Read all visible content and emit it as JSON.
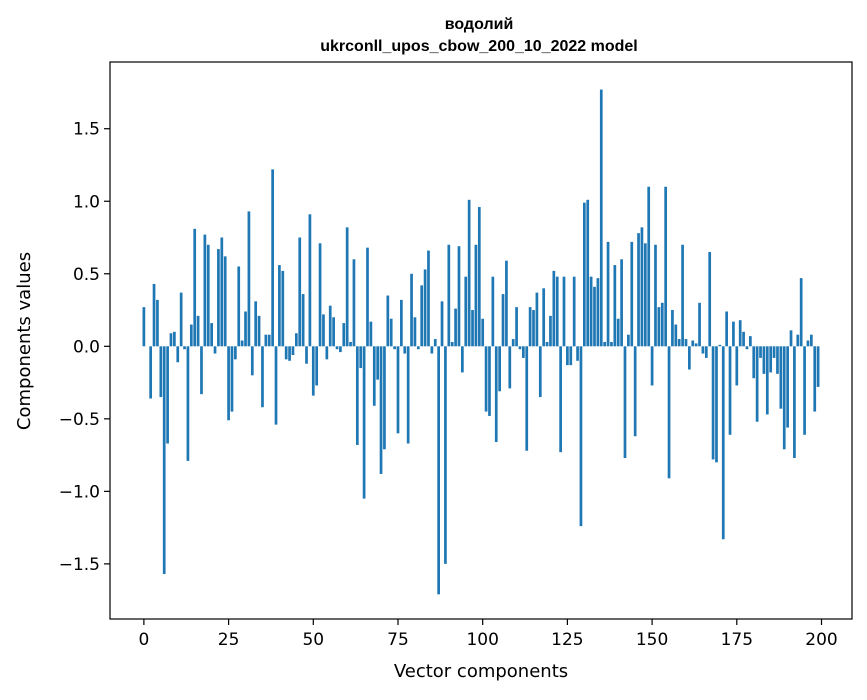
{
  "chart_data": {
    "type": "bar",
    "title_line1": "водолий",
    "title_line2": "ukrconll_upos_cbow_200_10_2022 model",
    "xlabel": "Vector components",
    "ylabel": "Components values",
    "xlim": [
      -10,
      209
    ],
    "ylim": [
      -1.88,
      1.96
    ],
    "xticks": [
      0,
      25,
      50,
      75,
      100,
      125,
      150,
      175,
      200
    ],
    "yticks": [
      -1.5,
      -1.0,
      -0.5,
      0.0,
      0.5,
      1.0,
      1.5
    ],
    "ytick_labels": [
      "−1.5",
      "−1.0",
      "−0.5",
      "0.0",
      "0.5",
      "1.0",
      "1.5"
    ],
    "bar_color": "#1f77b4",
    "grid": false,
    "x": [
      0,
      1,
      2,
      3,
      4,
      5,
      6,
      7,
      8,
      9,
      10,
      11,
      12,
      13,
      14,
      15,
      16,
      17,
      18,
      19,
      20,
      21,
      22,
      23,
      24,
      25,
      26,
      27,
      28,
      29,
      30,
      31,
      32,
      33,
      34,
      35,
      36,
      37,
      38,
      39,
      40,
      41,
      42,
      43,
      44,
      45,
      46,
      47,
      48,
      49,
      50,
      51,
      52,
      53,
      54,
      55,
      56,
      57,
      58,
      59,
      60,
      61,
      62,
      63,
      64,
      65,
      66,
      67,
      68,
      69,
      70,
      71,
      72,
      73,
      74,
      75,
      76,
      77,
      78,
      79,
      80,
      81,
      82,
      83,
      84,
      85,
      86,
      87,
      88,
      89,
      90,
      91,
      92,
      93,
      94,
      95,
      96,
      97,
      98,
      99,
      100,
      101,
      102,
      103,
      104,
      105,
      106,
      107,
      108,
      109,
      110,
      111,
      112,
      113,
      114,
      115,
      116,
      117,
      118,
      119,
      120,
      121,
      122,
      123,
      124,
      125,
      126,
      127,
      128,
      129,
      130,
      131,
      132,
      133,
      134,
      135,
      136,
      137,
      138,
      139,
      140,
      141,
      142,
      143,
      144,
      145,
      146,
      147,
      148,
      149,
      150,
      151,
      152,
      153,
      154,
      155,
      156,
      157,
      158,
      159,
      160,
      161,
      162,
      163,
      164,
      165,
      166,
      167,
      168,
      169,
      170,
      171,
      172,
      173,
      174,
      175,
      176,
      177,
      178,
      179,
      180,
      181,
      182,
      183,
      184,
      185,
      186,
      187,
      188,
      189,
      190,
      191,
      192,
      193,
      194,
      195,
      196,
      197,
      198,
      199
    ],
    "values": [
      0.27,
      0.0,
      -0.36,
      0.43,
      0.32,
      -0.35,
      -1.57,
      -0.67,
      0.09,
      0.1,
      -0.11,
      0.37,
      -0.02,
      -0.79,
      0.15,
      0.81,
      0.21,
      -0.33,
      0.77,
      0.7,
      0.16,
      -0.05,
      0.67,
      0.75,
      0.62,
      -0.51,
      -0.45,
      -0.09,
      0.55,
      0.04,
      0.24,
      0.93,
      -0.2,
      0.31,
      0.21,
      -0.42,
      0.08,
      0.08,
      1.22,
      -0.54,
      0.56,
      0.52,
      -0.09,
      -0.1,
      -0.06,
      0.09,
      0.75,
      0.36,
      -0.12,
      0.91,
      -0.34,
      -0.27,
      0.71,
      0.22,
      -0.09,
      0.28,
      0.2,
      -0.02,
      -0.04,
      0.16,
      0.82,
      0.03,
      0.6,
      -0.68,
      -0.15,
      -1.05,
      0.68,
      0.17,
      -0.41,
      -0.23,
      -0.88,
      -0.71,
      0.35,
      0.19,
      -0.02,
      -0.6,
      0.32,
      -0.05,
      -0.67,
      0.5,
      0.2,
      -0.02,
      0.42,
      0.53,
      0.66,
      -0.05,
      0.05,
      -1.71,
      0.31,
      -1.5,
      0.7,
      0.03,
      0.26,
      0.69,
      -0.18,
      0.48,
      1.01,
      0.25,
      0.7,
      0.96,
      0.19,
      -0.45,
      -0.48,
      0.48,
      -0.66,
      -0.31,
      0.36,
      0.59,
      -0.29,
      0.05,
      0.27,
      -0.02,
      -0.08,
      -0.72,
      0.27,
      0.25,
      0.37,
      -0.35,
      0.4,
      0.03,
      0.21,
      0.52,
      0.48,
      -0.73,
      0.48,
      -0.13,
      -0.13,
      0.48,
      -0.1,
      -1.24,
      0.99,
      1.01,
      0.48,
      0.41,
      0.47,
      1.77,
      0.03,
      0.72,
      0.03,
      0.56,
      0.19,
      0.6,
      -0.77,
      0.08,
      0.72,
      -0.62,
      0.78,
      0.82,
      0.71,
      1.1,
      -0.27,
      0.7,
      0.27,
      0.3,
      1.1,
      -0.91,
      0.25,
      0.15,
      0.05,
      0.7,
      0.05,
      -0.16,
      0.04,
      0.02,
      0.3,
      -0.05,
      -0.08,
      0.65,
      -0.78,
      -0.8,
      0.01,
      -1.33,
      0.24,
      -0.61,
      0.17,
      -0.27,
      0.18,
      0.1,
      -0.02,
      0.07,
      -0.22,
      -0.52,
      -0.08,
      -0.19,
      -0.47,
      -0.18,
      -0.08,
      -0.19,
      -0.43,
      -0.71,
      -0.56,
      0.11,
      -0.77,
      0.08,
      0.47,
      -0.61,
      0.04,
      0.08,
      -0.45,
      -0.28
    ]
  }
}
